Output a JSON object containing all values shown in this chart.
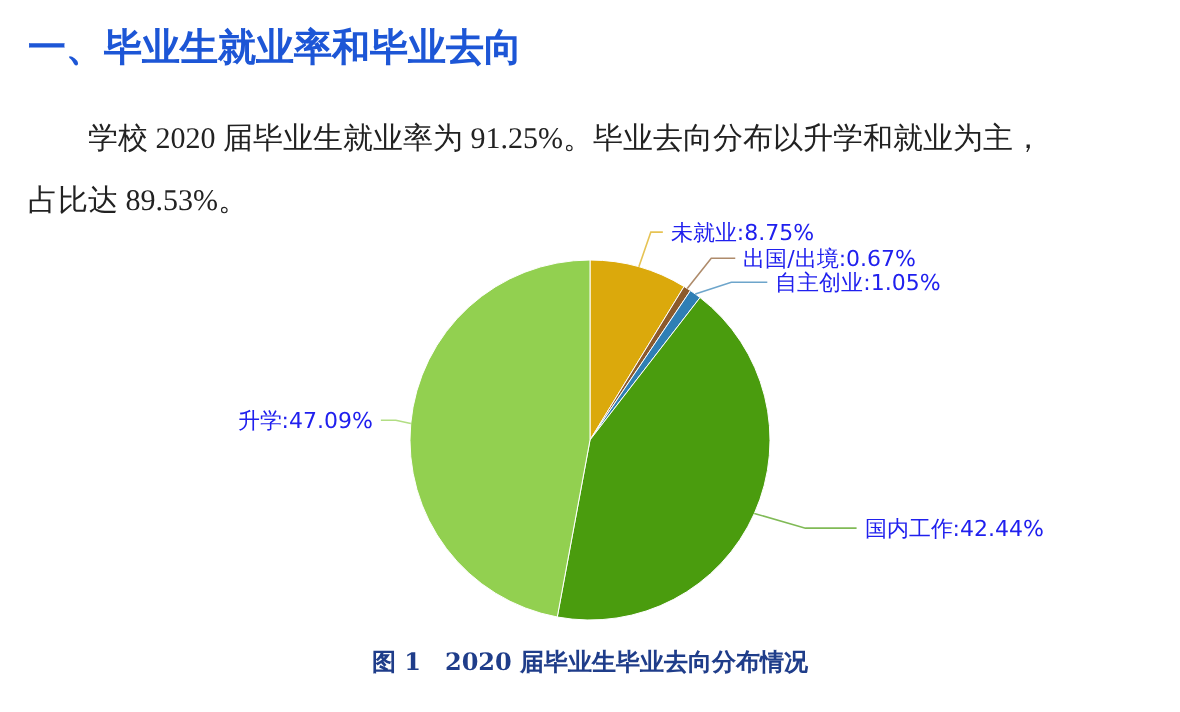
{
  "chart_data": {
    "type": "pie",
    "title": "一、毕业生就业率和毕业去向",
    "subtitle": "学校 2020 届毕业生就业率为 91.25%。毕业去向分布以升学和就业为主，占比达 89.53%。",
    "categories": [
      "未就业",
      "出国/出境",
      "自主创业",
      "国内工作",
      "升学"
    ],
    "values": [
      8.75,
      0.67,
      1.05,
      42.44,
      47.09
    ],
    "colors": [
      "#dba90c",
      "#8c5a2c",
      "#2f7fb5",
      "#4a9c0e",
      "#92d050"
    ],
    "value_labels": [
      "8.75%",
      "0.67%",
      "1.05%",
      "42.44%",
      "47.09%"
    ],
    "annotations": [
      "图 1　2020 届毕业生毕业去向分布情况"
    ]
  }
}
